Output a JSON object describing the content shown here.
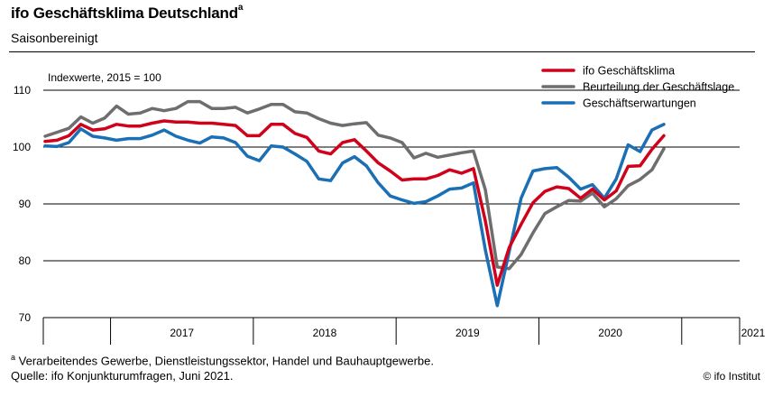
{
  "header": {
    "title": "ifo Geschäftsklima Deutschland",
    "title_footnote_marker": "a",
    "subtitle": "Saisonbereinigt"
  },
  "footer": {
    "note_marker": "a",
    "note": "Verarbeitendes Gewerbe, Dienstleistungssektor, Handel und Bauhauptgewerbe.",
    "source": "Quelle: ifo Konjunkturumfragen, Juni 2021.",
    "brand": "© ifo Institut"
  },
  "chart_data": {
    "type": "line",
    "title": "ifo Geschäftsklima Deutschland",
    "subtitle": "Saisonbereinigt",
    "annotation": "Indexwerte, 2015 = 100",
    "ylim": [
      70,
      110
    ],
    "yticks": [
      70,
      80,
      90,
      100,
      110
    ],
    "gridlines": [
      80,
      90,
      100,
      110
    ],
    "xlabels": [
      "2017",
      "2018",
      "2019",
      "2020",
      "2021"
    ],
    "x_range_months": [
      "2016-07",
      "2021-06"
    ],
    "legend_position": "top-right",
    "series": [
      {
        "name": "ifo Geschäftsklima",
        "color": "#d0021b",
        "values": [
          101.0,
          101.2,
          102.0,
          104.0,
          103.0,
          103.2,
          104.0,
          103.7,
          103.7,
          104.2,
          104.6,
          104.4,
          104.4,
          104.2,
          104.2,
          104.0,
          103.8,
          102.0,
          102.0,
          104.0,
          104.0,
          102.4,
          101.7,
          99.3,
          98.8,
          100.8,
          101.3,
          99.3,
          97.2,
          95.8,
          94.2,
          94.4,
          94.4,
          95.0,
          96.0,
          95.4,
          96.2,
          87.0,
          75.7,
          82.3,
          86.4,
          90.2,
          92.2,
          93.0,
          92.7,
          91.0,
          92.6,
          90.7,
          92.3,
          96.6,
          96.7,
          99.6,
          102.0
        ]
      },
      {
        "name": "Beurteilung der Geschäftslage",
        "color": "#6e6e6e",
        "values": [
          101.9,
          102.6,
          103.3,
          105.3,
          104.2,
          105.1,
          107.2,
          105.8,
          106.0,
          106.8,
          106.4,
          106.8,
          108.0,
          108.0,
          106.8,
          106.8,
          107.0,
          106.0,
          106.7,
          107.5,
          107.5,
          106.2,
          106.0,
          105.0,
          104.2,
          103.8,
          104.1,
          104.3,
          102.1,
          101.6,
          100.8,
          98.1,
          98.9,
          98.2,
          98.6,
          99.0,
          99.3,
          92.5,
          78.9,
          78.6,
          81.1,
          84.9,
          88.3,
          89.5,
          90.6,
          90.5,
          91.9,
          89.5,
          90.9,
          93.2,
          94.3,
          96.0,
          99.7
        ]
      },
      {
        "name": "Geschäftserwartungen",
        "color": "#1a6fb5",
        "values": [
          100.2,
          100.1,
          100.8,
          103.2,
          101.9,
          101.6,
          101.2,
          101.5,
          101.5,
          102.1,
          103.0,
          101.9,
          101.2,
          100.7,
          101.8,
          101.6,
          100.8,
          98.4,
          97.6,
          100.2,
          100.0,
          98.8,
          97.5,
          94.4,
          94.1,
          97.2,
          98.3,
          96.7,
          93.7,
          91.4,
          90.7,
          90.1,
          90.4,
          91.4,
          92.6,
          92.8,
          93.7,
          81.9,
          72.1,
          81.6,
          91.0,
          95.8,
          96.2,
          96.4,
          94.7,
          92.6,
          93.4,
          91.0,
          94.4,
          100.4,
          99.2,
          103.0,
          104.0
        ]
      }
    ]
  }
}
